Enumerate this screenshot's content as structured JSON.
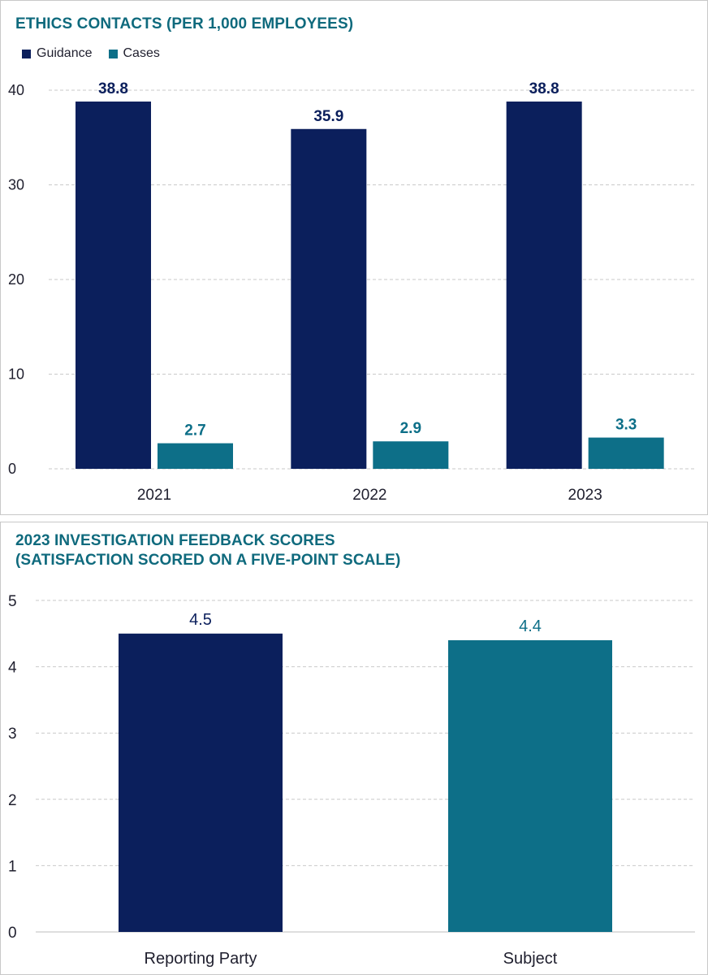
{
  "chart_data": [
    {
      "type": "bar",
      "title": "ETHICS CONTACTS (PER 1,000 EMPLOYEES)",
      "categories": [
        "2021",
        "2022",
        "2023"
      ],
      "series": [
        {
          "name": "Guidance",
          "values": [
            38.8,
            35.9,
            38.8
          ],
          "labels": [
            "38.8",
            "35.9",
            "38.8"
          ],
          "color": "#0b1f5c"
        },
        {
          "name": "Cases",
          "values": [
            2.7,
            2.9,
            3.3
          ],
          "labels": [
            "2.7",
            "2.9",
            "3.3"
          ],
          "color": "#0d6f88"
        }
      ],
      "yticks": [
        "0",
        "10",
        "20",
        "30",
        "40"
      ],
      "ylim": [
        0,
        40
      ],
      "xlabel": "",
      "ylabel": "",
      "legend": "top-left",
      "grid": true
    },
    {
      "type": "bar",
      "title_lines": [
        "2023 INVESTIGATION FEEDBACK SCORES",
        "(SATISFACTION SCORED ON A FIVE-POINT SCALE)"
      ],
      "categories": [
        "Reporting Party",
        "Subject"
      ],
      "values": [
        4.5,
        4.4
      ],
      "labels": [
        "4.5",
        "4.4"
      ],
      "colors": [
        "#0b1f5c",
        "#0d6f88"
      ],
      "yticks": [
        "0",
        "1",
        "2",
        "3",
        "4",
        "5"
      ],
      "ylim": [
        0,
        5
      ],
      "xlabel": "",
      "ylabel": "",
      "grid": true
    }
  ]
}
